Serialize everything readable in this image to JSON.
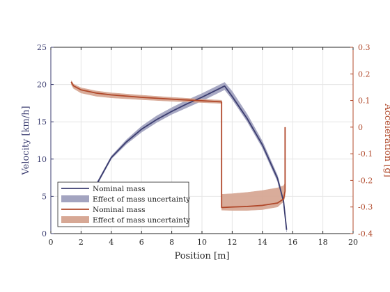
{
  "chart_data": {
    "type": "line",
    "xlabel": "Position [m]",
    "ylabel_left": "Velocity [km/h]",
    "ylabel_right": "Acceleration [g]",
    "xlim": [
      0,
      20
    ],
    "ylim_left": [
      0,
      25
    ],
    "ylim_right": [
      -0.4,
      0.3
    ],
    "xticks": [
      "0",
      "2",
      "4",
      "6",
      "8",
      "10",
      "12",
      "14",
      "16",
      "18",
      "20"
    ],
    "yticks_left": [
      "0",
      "5",
      "10",
      "15",
      "20",
      "25"
    ],
    "yticks_right": [
      "-0.4",
      "-0.3",
      "-0.2",
      "-0.1",
      "0",
      "0.1",
      "0.2",
      "0.3"
    ],
    "grid": true,
    "legend_position": "bottom-left",
    "colors": {
      "velocity": "#3b3d70",
      "velocity_band": "#a3a4c0",
      "acceleration": "#b0482a",
      "acceleration_band": "#d7a895"
    },
    "legend": [
      {
        "label": "Nominal mass",
        "kind": "line",
        "color": "#3b3d70"
      },
      {
        "label": "Effect of mass uncertainty",
        "kind": "band",
        "color": "#a3a4c0"
      },
      {
        "label": "Nominal mass",
        "kind": "line",
        "color": "#b0482a"
      },
      {
        "label": "Effect of mass uncertainty",
        "kind": "band",
        "color": "#d7a895"
      }
    ],
    "series": [
      {
        "axis": "left",
        "x": [
          2.6,
          3.0,
          4.0,
          5.0,
          6.0,
          7.0,
          8.0,
          9.0,
          10.0,
          11.0,
          11.5,
          12.0,
          13.0,
          14.0,
          15.0,
          15.4,
          15.6
        ],
        "y": [
          3.2,
          6.5,
          10.2,
          12.3,
          14.0,
          15.3,
          16.4,
          17.4,
          18.3,
          19.3,
          19.8,
          18.4,
          15.4,
          11.9,
          7.4,
          4.3,
          0.5
        ]
      },
      {
        "axis": "left",
        "x": [
          2.6,
          3.0,
          4.0,
          5.0,
          6.0,
          7.0,
          8.0,
          9.0,
          10.0,
          11.0,
          11.5,
          12.0,
          13.0,
          14.0,
          15.0,
          15.4,
          15.6
        ],
        "y_lower": [
          3.0,
          6.3,
          10.0,
          12.0,
          13.6,
          14.9,
          16.0,
          16.9,
          17.8,
          18.8,
          19.3,
          18.0,
          15.0,
          11.5,
          7.0,
          3.9,
          0.2
        ],
        "y_upper": [
          3.4,
          6.7,
          10.4,
          12.6,
          14.4,
          15.8,
          16.9,
          17.9,
          18.8,
          19.8,
          20.3,
          19.1,
          16.0,
          12.4,
          7.8,
          4.7,
          0.8
        ]
      },
      {
        "axis": "right",
        "x": [
          1.35,
          1.5,
          2.0,
          3.0,
          4.0,
          6.0,
          8.0,
          10.0,
          11.3,
          11.3,
          12.0,
          13.0,
          14.0,
          15.0,
          15.4,
          15.5,
          15.5
        ],
        "y": [
          0.17,
          0.155,
          0.14,
          0.128,
          0.121,
          0.112,
          0.105,
          0.099,
          0.095,
          -0.302,
          -0.3,
          -0.298,
          -0.294,
          -0.285,
          -0.27,
          -0.24,
          0.0
        ]
      },
      {
        "axis": "right",
        "x": [
          1.35,
          1.5,
          2.0,
          3.0,
          4.0,
          6.0,
          8.0,
          10.0,
          11.3,
          11.3,
          12.0,
          13.0,
          14.0,
          15.0,
          15.4,
          15.5,
          15.5
        ],
        "y_lower": [
          0.16,
          0.145,
          0.128,
          0.116,
          0.11,
          0.103,
          0.097,
          0.092,
          0.089,
          -0.312,
          -0.313,
          -0.313,
          -0.31,
          -0.3,
          -0.28,
          -0.26,
          0.0
        ],
        "y_upper": [
          0.175,
          0.162,
          0.148,
          0.136,
          0.129,
          0.12,
          0.112,
          0.105,
          0.101,
          -0.252,
          -0.25,
          -0.245,
          -0.238,
          -0.228,
          -0.22,
          -0.21,
          0.0
        ]
      }
    ]
  }
}
